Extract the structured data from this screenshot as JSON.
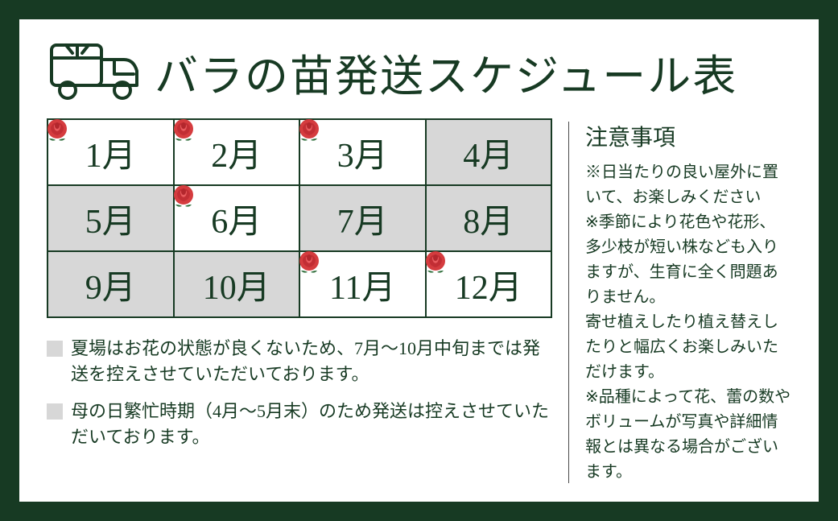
{
  "title": "バラの苗発送スケジュール表",
  "colors": {
    "frame": "#173a23",
    "paper": "#ffffff",
    "shade": "#d7d7d7",
    "rose_fill": "#d53c3f",
    "rose_leaf": "#2e6d3a",
    "text": "#173a23"
  },
  "calendar": {
    "rows": [
      [
        {
          "label": "1月",
          "shaded": false,
          "rose": true
        },
        {
          "label": "2月",
          "shaded": false,
          "rose": true
        },
        {
          "label": "3月",
          "shaded": false,
          "rose": true
        },
        {
          "label": "4月",
          "shaded": true,
          "rose": false
        }
      ],
      [
        {
          "label": "5月",
          "shaded": true,
          "rose": false
        },
        {
          "label": "6月",
          "shaded": false,
          "rose": true
        },
        {
          "label": "7月",
          "shaded": true,
          "rose": false
        },
        {
          "label": "8月",
          "shaded": true,
          "rose": false
        }
      ],
      [
        {
          "label": "9月",
          "shaded": true,
          "rose": false
        },
        {
          "label": "10月",
          "shaded": true,
          "rose": false
        },
        {
          "label": "11月",
          "shaded": false,
          "rose": true
        },
        {
          "label": "12月",
          "shaded": false,
          "rose": true
        }
      ]
    ]
  },
  "notes": [
    "夏場はお花の状態が良くないため、7月～10月中旬までは発送を控えさせていただいております。",
    "母の日繁忙時期（4月～5月末）のため発送は控えさせていただいております。"
  ],
  "right": {
    "title": "注意事項",
    "body": "※日当たりの良い屋外に置いて、お楽しみください\n※季節により花色や花形、多少枝が短い株なども入りますが、生育に全く問題ありません。\n寄せ植えしたり植え替えしたりと幅広くお楽しみいただけます。\n※品種によって花、蕾の数やボリュームが写真や詳細情報とは異なる場合がございます。"
  }
}
